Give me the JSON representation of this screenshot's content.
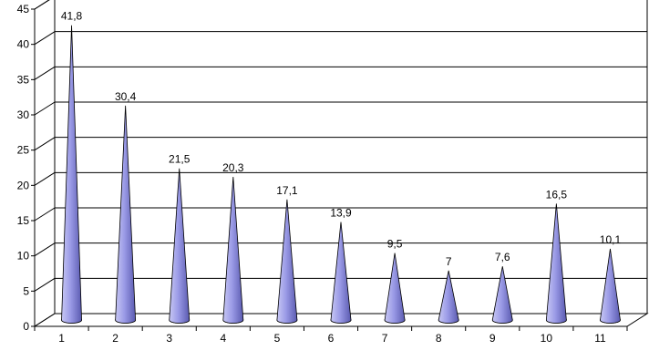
{
  "chart_data": {
    "type": "bar",
    "bar_shape": "3d-cone",
    "categories": [
      "1",
      "2",
      "3",
      "4",
      "5",
      "6",
      "7",
      "8",
      "9",
      "10",
      "11"
    ],
    "values": [
      41.8,
      30.4,
      21.5,
      20.3,
      17.1,
      13.9,
      9.5,
      7,
      7.6,
      16.5,
      10.1
    ],
    "value_labels": [
      "41,8",
      "30,4",
      "21,5",
      "20,3",
      "17,1",
      "13,9",
      "9,5",
      "7",
      "7,6",
      "16,5",
      "10,1"
    ],
    "y_ticks": [
      0,
      5,
      10,
      15,
      20,
      25,
      30,
      35,
      40,
      45
    ],
    "ylim": [
      0,
      45
    ],
    "grid": true,
    "legend": "none",
    "title": "",
    "xlabel": "",
    "ylabel": "",
    "colors": {
      "cone_light": "#c8c8f4",
      "cone_mid": "#9a9ae6",
      "cone_dark": "#5a5ab0",
      "cone_stroke": "#000000",
      "grid": "#000000",
      "axis": "#000000",
      "background": "#ffffff"
    }
  }
}
